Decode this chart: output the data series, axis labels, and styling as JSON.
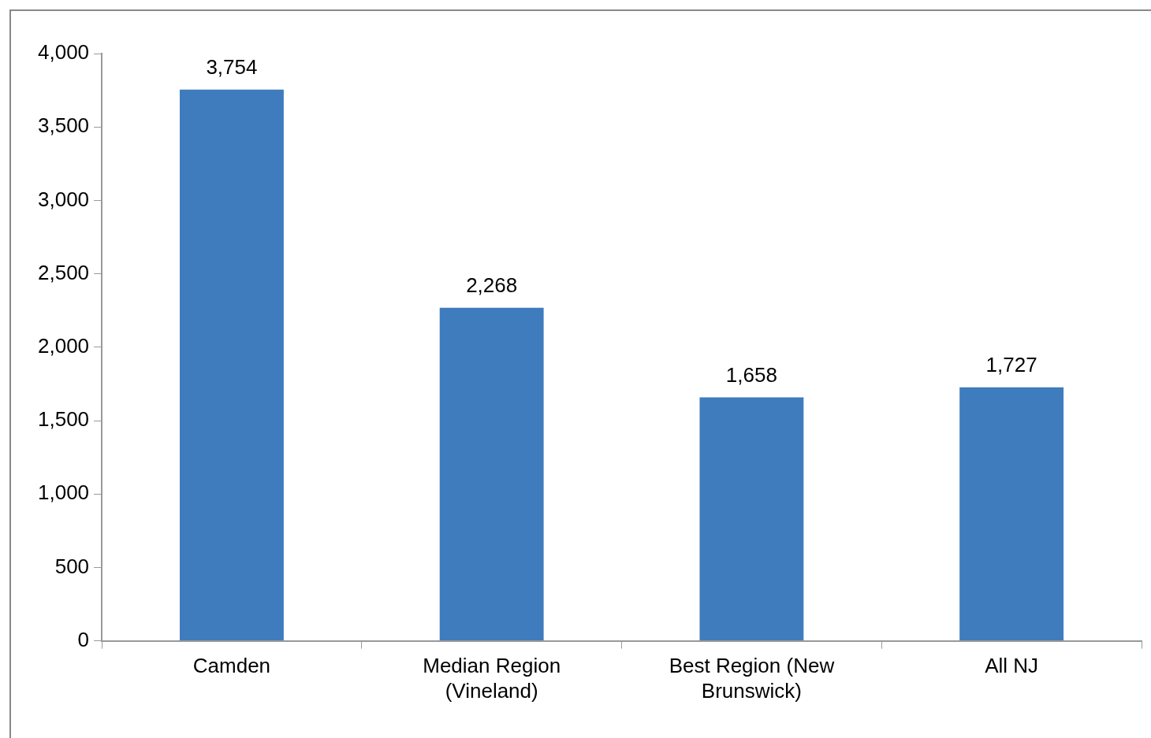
{
  "chart_data": {
    "type": "bar",
    "categories": [
      "Camden",
      "Median Region (Vineland)",
      "Best Region (New Brunswick)",
      "All NJ"
    ],
    "values": [
      3754,
      2268,
      1658,
      1727
    ],
    "color": "#3f7cbd",
    "ylim": [
      0,
      4000
    ],
    "yticks": [
      0,
      500,
      {
        "value": 1000,
        "label": "1,000"
      },
      {
        "value": 1500,
        "label": "1,500"
      },
      {
        "value": 2000,
        "label": "2,000"
      },
      {
        "value": 2500,
        "label": "2,500"
      },
      {
        "value": 3000,
        "label": "3,000"
      },
      {
        "value": 3500,
        "label": "3,500"
      },
      {
        "value": 4000,
        "label": "4,000"
      }
    ],
    "grid": false,
    "legend": false,
    "value_labels": [
      "3,754",
      "2,268",
      "1,658",
      "1,727"
    ]
  }
}
